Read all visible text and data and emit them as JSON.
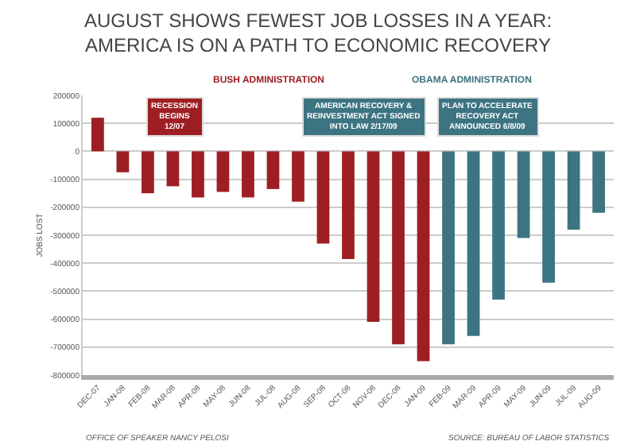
{
  "chart_data": {
    "type": "bar",
    "title": "AUGUST SHOWS FEWEST JOB LOSSES IN A YEAR:\nAMERICA IS ON A PATH TO ECONOMIC RECOVERY",
    "ylabel": "JOBS LOST",
    "categories": [
      "DEC-07",
      "JAN-08",
      "FEB-08",
      "MAR-08",
      "APR-08",
      "MAY-08",
      "JUN-08",
      "JUL-08",
      "AUG-08",
      "SEP-08",
      "OCT-08",
      "NOV-08",
      "DEC-08",
      "JAN-09",
      "FEB-09",
      "MAR-09",
      "APR-09",
      "MAY-09",
      "JUN-09",
      "JUL-09",
      "AUG-09"
    ],
    "values": [
      120000,
      -75000,
      -150000,
      -125000,
      -165000,
      -145000,
      -165000,
      -135000,
      -180000,
      -330000,
      -385000,
      -610000,
      -690000,
      -750000,
      -690000,
      -660000,
      -530000,
      -310000,
      -470000,
      -280000,
      -220000
    ],
    "colors": [
      "#9e1f23",
      "#9e1f23",
      "#9e1f23",
      "#9e1f23",
      "#9e1f23",
      "#9e1f23",
      "#9e1f23",
      "#9e1f23",
      "#9e1f23",
      "#9e1f23",
      "#9e1f23",
      "#9e1f23",
      "#9e1f23",
      "#9e1f23",
      "#3d7482",
      "#3d7482",
      "#3d7482",
      "#3d7482",
      "#3d7482",
      "#3d7482",
      "#3d7482"
    ],
    "ylim": [
      -800000,
      200000
    ],
    "yticks": [
      -800000,
      -700000,
      -600000,
      -500000,
      -400000,
      -300000,
      -200000,
      -100000,
      0,
      100000,
      200000
    ],
    "grid": "y",
    "annotations": [
      "BUSH ADMINISTRATION",
      "OBAMA ADMINISTRATION",
      "OFFICE OF SPEAKER NANCY PELOSI",
      "SOURCE: BUREAU OF LABOR STATISTICS",
      "RECESSION\nBEGINS\n12/07",
      "AMERICAN RECOVERY &\nREINVESTMENT ACT SIGNED\nINTO LAW 2/17/09",
      "PLAN TO ACCELERATE\nRECOVERY ACT\nANNOUNCED 6/8/09"
    ]
  }
}
